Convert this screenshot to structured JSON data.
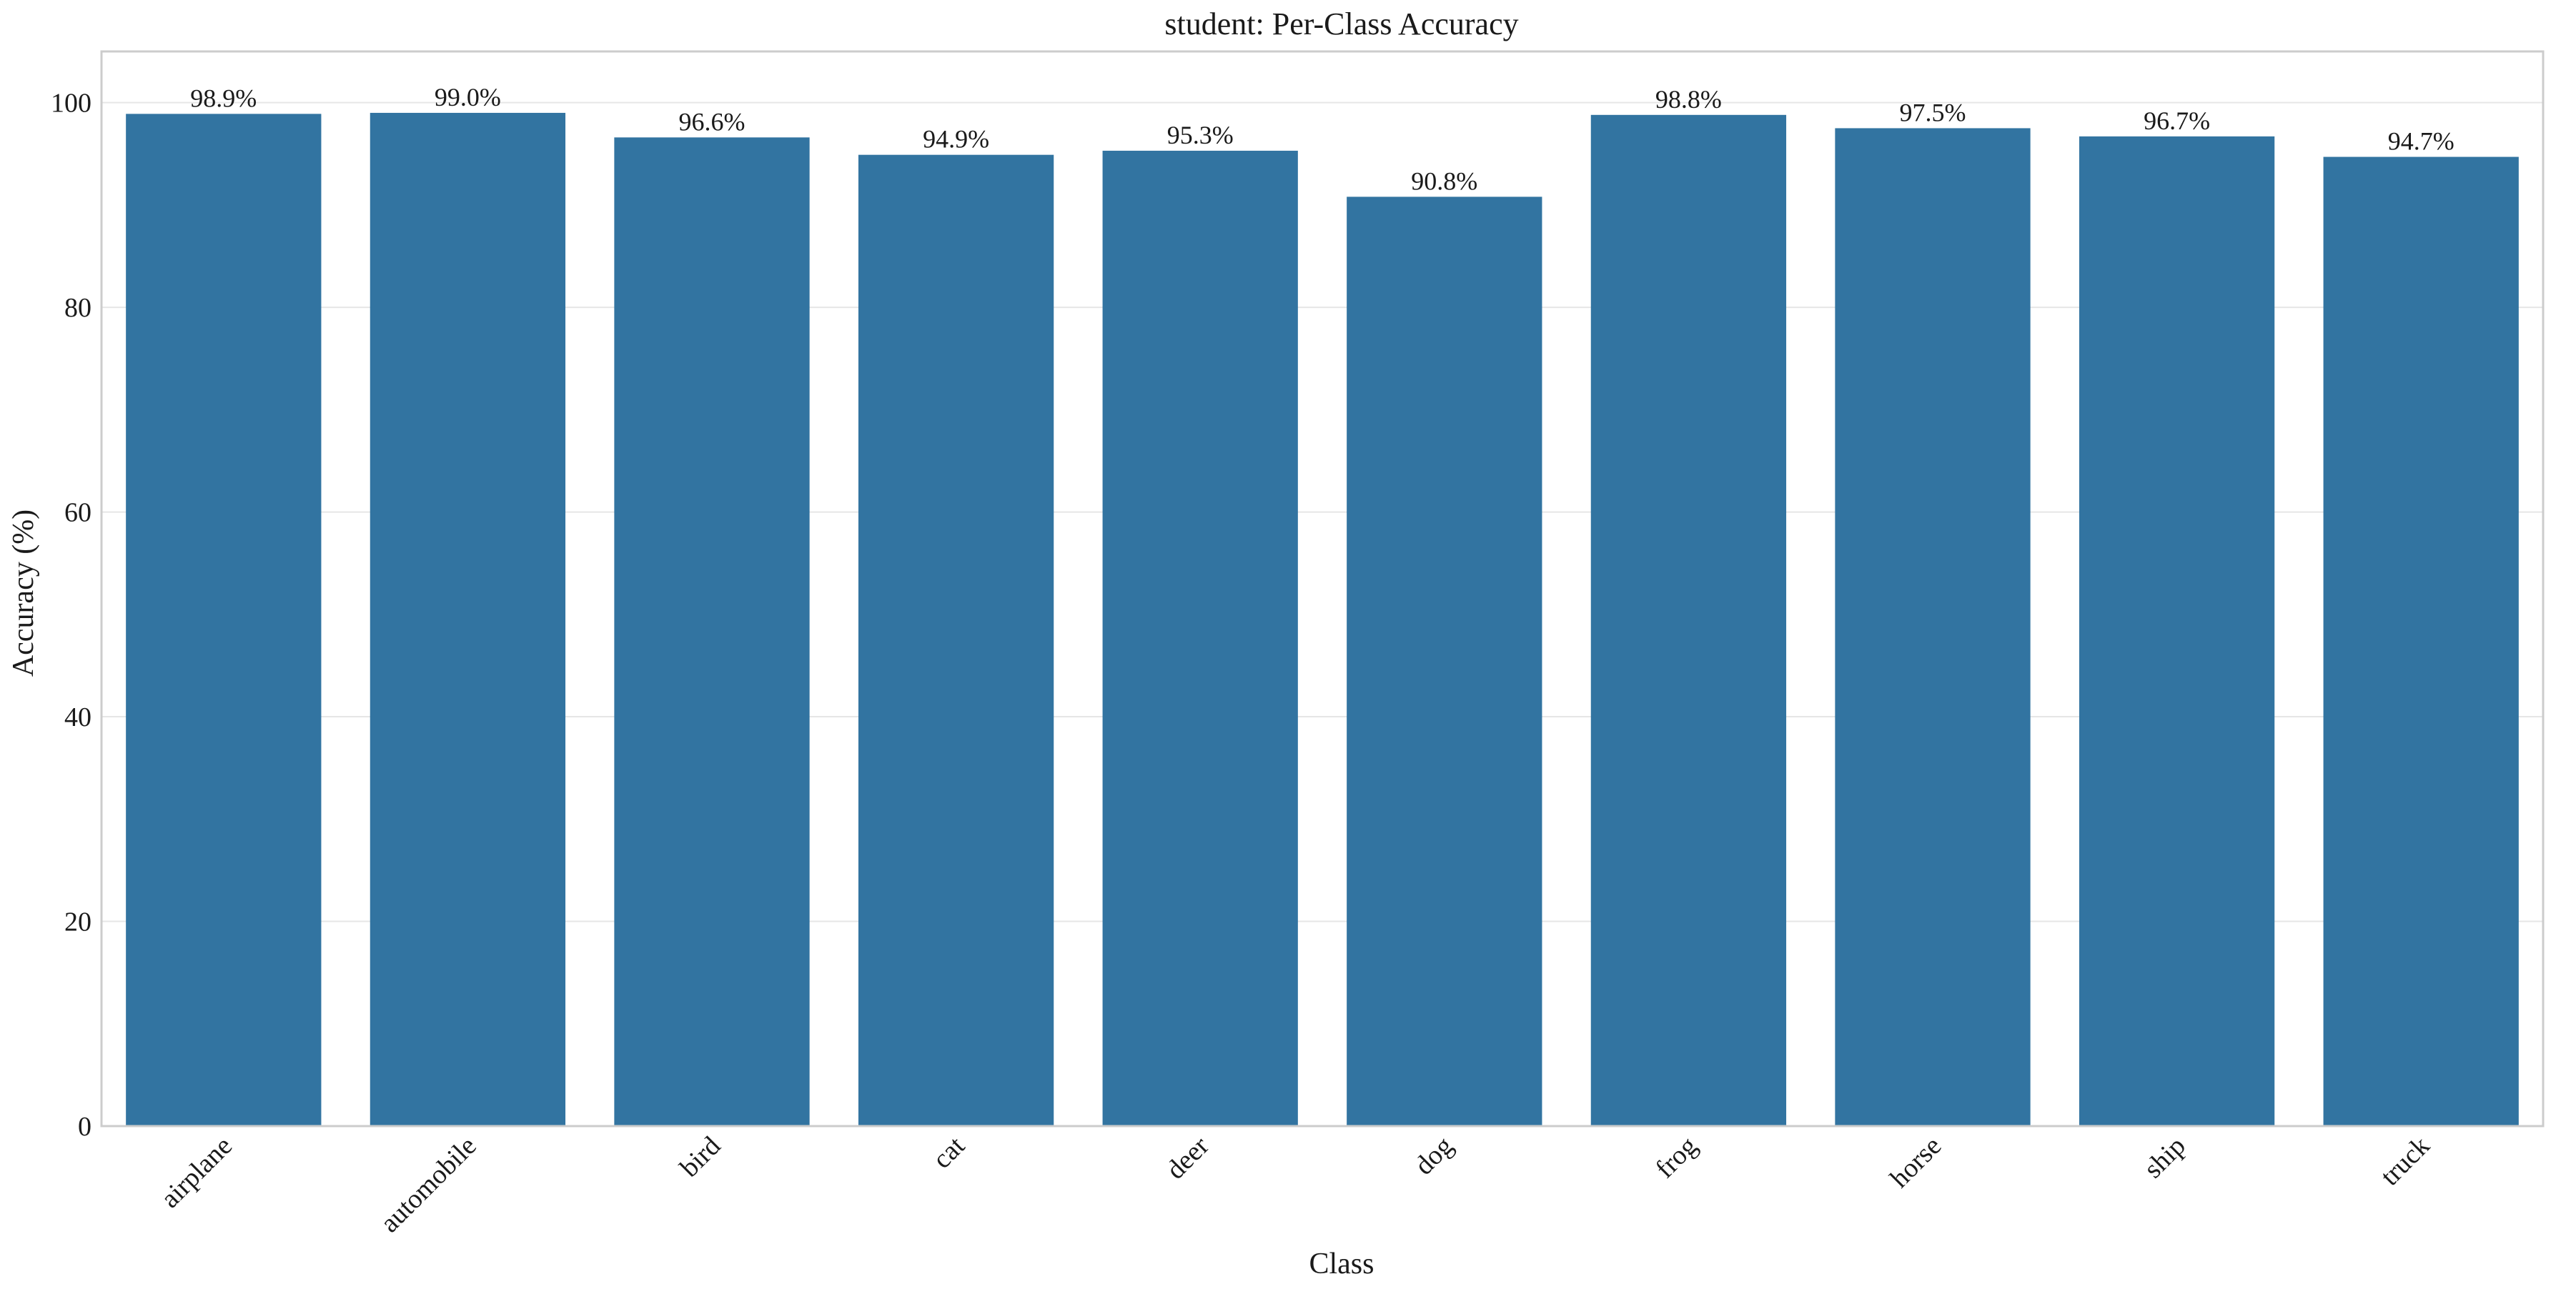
{
  "chart_data": {
    "type": "bar",
    "title": "student: Per-Class Accuracy",
    "xlabel": "Class",
    "ylabel": "Accuracy (%)",
    "categories": [
      "airplane",
      "automobile",
      "bird",
      "cat",
      "deer",
      "dog",
      "frog",
      "horse",
      "ship",
      "truck"
    ],
    "values": [
      98.9,
      99.0,
      96.6,
      94.9,
      95.3,
      90.8,
      98.8,
      97.5,
      96.7,
      94.7
    ],
    "data_labels": [
      "98.9%",
      "99.0%",
      "96.6%",
      "94.9%",
      "95.3%",
      "90.8%",
      "98.8%",
      "97.5%",
      "96.7%",
      "94.7%"
    ],
    "ylim": [
      0,
      105
    ],
    "yticks": [
      0,
      20,
      40,
      60,
      80,
      100
    ],
    "grid": true,
    "legend": "none",
    "colors": {
      "bar": "#3274a1",
      "grid": "#e6e6e6",
      "axes_border": "#cccccc",
      "text": "#1a1a1a"
    }
  }
}
